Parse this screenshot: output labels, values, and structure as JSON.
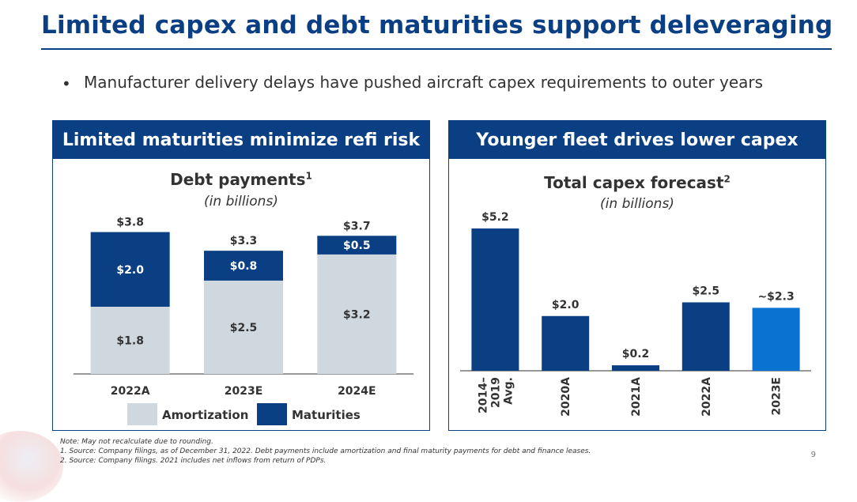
{
  "slide": {
    "title": "Limited capex and debt maturities support deleveraging",
    "bullet": "Manufacturer delivery delays have pushed aircraft capex requirements to outer years",
    "page_number": "9"
  },
  "left_panel": {
    "header": "Limited maturities minimize refi risk",
    "chart_title": "Debt payments",
    "chart_title_sup": "1",
    "chart_subtitle": "(in billions)",
    "legend": [
      {
        "label": "Amortization",
        "color": "#d0d8df"
      },
      {
        "label": "Maturities",
        "color": "#0b3f84"
      }
    ]
  },
  "right_panel": {
    "header": "Younger fleet drives lower capex",
    "chart_title": "Total capex forecast",
    "chart_title_sup": "2",
    "chart_subtitle": "(in billions)"
  },
  "notes": [
    "Note:  May not recalculate due to rounding.",
    "1. Source: Company filings, as of December 31, 2022. Debt payments include amortization and final maturity payments for debt and finance leases.",
    "2. Source: Company filings. 2021 includes net inflows from return of PDPs."
  ],
  "chart_data": [
    {
      "type": "bar",
      "stacked": true,
      "title": "Debt payments",
      "subtitle": "(in billions)",
      "categories": [
        "2022A",
        "2023E",
        "2024E"
      ],
      "series": [
        {
          "name": "Amortization",
          "values": [
            1.8,
            2.5,
            3.2
          ],
          "labels": [
            "$1.8",
            "$2.5",
            "$3.2"
          ],
          "color": "#d0d8df"
        },
        {
          "name": "Maturities",
          "values": [
            2.0,
            0.8,
            0.5
          ],
          "labels": [
            "$2.0",
            "$0.8",
            "$0.5"
          ],
          "color": "#0b3f84"
        }
      ],
      "totals": [
        "$3.8",
        "$3.3",
        "$3.7"
      ],
      "ylim": [
        0,
        4.2
      ],
      "legend": "bottom"
    },
    {
      "type": "bar",
      "title": "Total capex forecast",
      "subtitle": "(in billions)",
      "categories": [
        "2014–\n2019\nAvg.",
        "2020A",
        "2021A",
        "2022A",
        "2023E"
      ],
      "values": [
        5.2,
        2.0,
        0.2,
        2.5,
        2.3
      ],
      "labels": [
        "$5.2",
        "$2.0",
        "$0.2",
        "$2.5",
        "~$2.3"
      ],
      "colors": [
        "#0b3f84",
        "#0b3f84",
        "#0b3f84",
        "#0b3f84",
        "#0a73d2"
      ],
      "ylim": [
        0,
        5.6
      ]
    }
  ]
}
